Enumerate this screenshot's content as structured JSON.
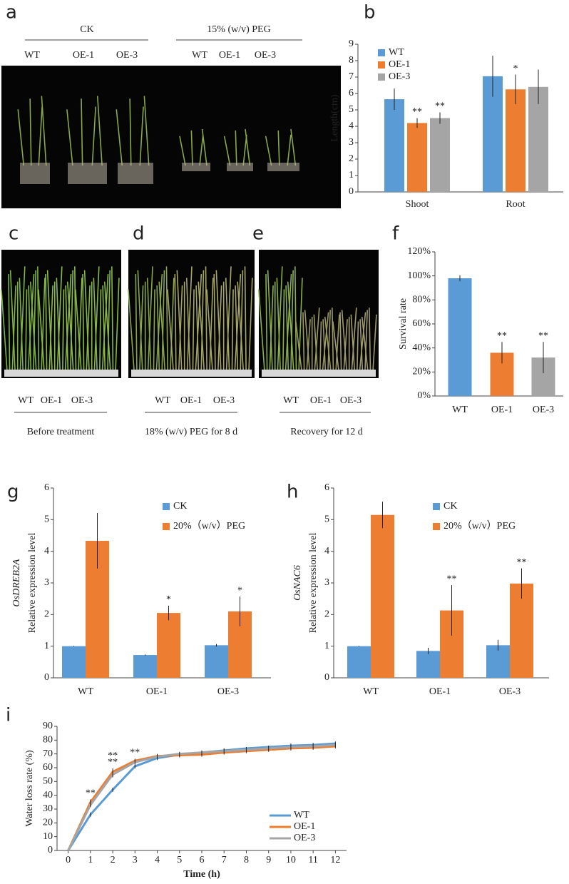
{
  "photos": [
    {
      "letter": "a",
      "groups": [
        {
          "label": "CK",
          "lines": [
            "WT",
            "OE-1",
            "OE-3"
          ]
        },
        {
          "label": "15% (w/v) PEG",
          "lines": [
            "WT",
            "OE-1",
            "OE-3"
          ]
        }
      ]
    },
    {
      "letter": "c",
      "lines": [
        "WT",
        "OE-1",
        "OE-3"
      ],
      "caption": "Before treatment"
    },
    {
      "letter": "d",
      "lines": [
        "WT",
        "OE-1",
        "OE-3"
      ],
      "caption": "18% (w/v) PEG for 8 d"
    },
    {
      "letter": "e",
      "lines": [
        "WT",
        "OE-1",
        "OE-3"
      ],
      "caption": "Recovery for 12 d"
    }
  ],
  "chart_data": [
    {
      "type": "bar",
      "panel": "b",
      "ylabel": "Length(cm)",
      "categories": [
        "Shoot",
        "Root"
      ],
      "series": [
        {
          "name": "WT",
          "color": "#5b9bd5",
          "values": [
            5.65,
            7.05
          ],
          "errors": [
            0.65,
            1.25
          ],
          "significance": [
            null,
            null
          ]
        },
        {
          "name": "OE-1",
          "color": "#ed7d31",
          "values": [
            4.2,
            6.25
          ],
          "errors": [
            0.3,
            0.9
          ],
          "significance": [
            "**",
            "*"
          ]
        },
        {
          "name": "OE-3",
          "color": "#a5a5a5",
          "values": [
            4.5,
            6.4
          ],
          "errors": [
            0.35,
            1.05
          ],
          "significance": [
            "**",
            null
          ]
        }
      ],
      "ylim": [
        0,
        9
      ],
      "yticks": [
        0,
        1,
        2,
        3,
        4,
        5,
        6,
        7,
        8,
        9
      ],
      "legend": "upper left"
    },
    {
      "type": "bar",
      "panel": "f",
      "ylabel": "Survival rate",
      "categories": [
        "WT",
        "OE-1",
        "OE-3"
      ],
      "values": [
        98,
        36,
        32
      ],
      "errors": [
        2.5,
        9,
        13
      ],
      "colors": [
        "#5b9bd5",
        "#ed7d31",
        "#a5a5a5"
      ],
      "significance": [
        null,
        "**",
        "**"
      ],
      "ylim": [
        0,
        120
      ],
      "yticks": [
        {
          "value": 0,
          "label": "0%"
        },
        {
          "value": 20,
          "label": "20%"
        },
        {
          "value": 40,
          "label": "40%"
        },
        {
          "value": 60,
          "label": "60%"
        },
        {
          "value": 80,
          "label": "80%"
        },
        {
          "value": 100,
          "label": "100%"
        },
        {
          "value": 120,
          "label": "120%"
        }
      ]
    },
    {
      "type": "bar",
      "panel": "g",
      "gene": "OsDREB2A",
      "ylabel": "Relative expression level",
      "categories": [
        "WT",
        "OE-1",
        "OE-3"
      ],
      "series": [
        {
          "name": "CK",
          "color": "#5b9bd5",
          "values": [
            1.0,
            0.72,
            1.03
          ],
          "errors": [
            0.01,
            0.02,
            0.04
          ],
          "significance": [
            null,
            null,
            null
          ]
        },
        {
          "name": "20%（w/v）PEG",
          "color": "#ed7d31",
          "values": [
            4.33,
            2.05,
            2.1
          ],
          "errors": [
            0.88,
            0.23,
            0.47
          ],
          "significance": [
            null,
            "*",
            "*"
          ]
        }
      ],
      "ylim": [
        0,
        6
      ],
      "yticks": [
        0,
        1,
        2,
        3,
        4,
        5,
        6
      ],
      "legend": "upper center"
    },
    {
      "type": "bar",
      "panel": "h",
      "gene": "OsNAC6",
      "ylabel": "Relative expression level",
      "categories": [
        "WT",
        "OE-1",
        "OE-3"
      ],
      "series": [
        {
          "name": "CK",
          "color": "#5b9bd5",
          "values": [
            1.0,
            0.85,
            1.03
          ],
          "errors": [
            0.01,
            0.1,
            0.17
          ],
          "significance": [
            null,
            null,
            null
          ]
        },
        {
          "name": "20%（w/v）PEG",
          "color": "#ed7d31",
          "values": [
            5.15,
            2.13,
            2.98
          ],
          "errors": [
            0.42,
            0.8,
            0.48
          ],
          "significance": [
            null,
            "**",
            "**"
          ]
        }
      ],
      "ylim": [
        0,
        6
      ],
      "yticks": [
        0,
        1,
        2,
        3,
        4,
        5,
        6
      ],
      "legend": "upper center"
    },
    {
      "type": "line",
      "panel": "i",
      "xlabel": "Time (h)",
      "ylabel": "Water loss rate (%)",
      "x": [
        0,
        1,
        2,
        3,
        4,
        5,
        6,
        7,
        8,
        9,
        10,
        11,
        12
      ],
      "series": [
        {
          "name": "WT",
          "color": "#5b9bd5",
          "values": [
            0,
            26,
            44,
            61,
            67,
            69.5,
            71,
            72.5,
            74,
            75,
            76,
            76.5,
            77.5
          ],
          "errors": [
            0,
            1.5,
            1.5,
            1.5,
            1.5,
            1.5,
            1.5,
            1.5,
            1,
            1,
            1.5,
            1.5,
            1.5
          ]
        },
        {
          "name": "OE-1",
          "color": "#ed7d31",
          "values": [
            0,
            35,
            57,
            65,
            68.5,
            69,
            69.5,
            71,
            72,
            73,
            74,
            74.5,
            75.5
          ],
          "errors": [
            0,
            2,
            2.5,
            1.5,
            1.5,
            1.5,
            1.5,
            1.5,
            1.5,
            1.5,
            1.5,
            1.5,
            1.5
          ]
        },
        {
          "name": "OE-3",
          "color": "#a5a5a5",
          "values": [
            0,
            33,
            55,
            64,
            68,
            70,
            71,
            72,
            73,
            74,
            75,
            75.5,
            76.5
          ],
          "errors": [
            0,
            1.5,
            2,
            1.5,
            1.5,
            1.5,
            1.5,
            1.5,
            1.5,
            1.5,
            1.5,
            1.5,
            1.5
          ]
        }
      ],
      "significance": [
        null,
        [
          "**"
        ],
        [
          "**",
          "**"
        ],
        [
          "**"
        ],
        null,
        null,
        null,
        null,
        null,
        null,
        null,
        null,
        null
      ],
      "xlim": [
        -0.5,
        12.5
      ],
      "xticks": [
        0,
        1,
        2,
        3,
        4,
        5,
        6,
        7,
        8,
        9,
        10,
        11,
        12
      ],
      "ylim": [
        0,
        90
      ],
      "yticks": [
        0,
        10,
        20,
        30,
        40,
        50,
        60,
        70,
        80,
        90
      ],
      "legend": "lower right"
    }
  ]
}
